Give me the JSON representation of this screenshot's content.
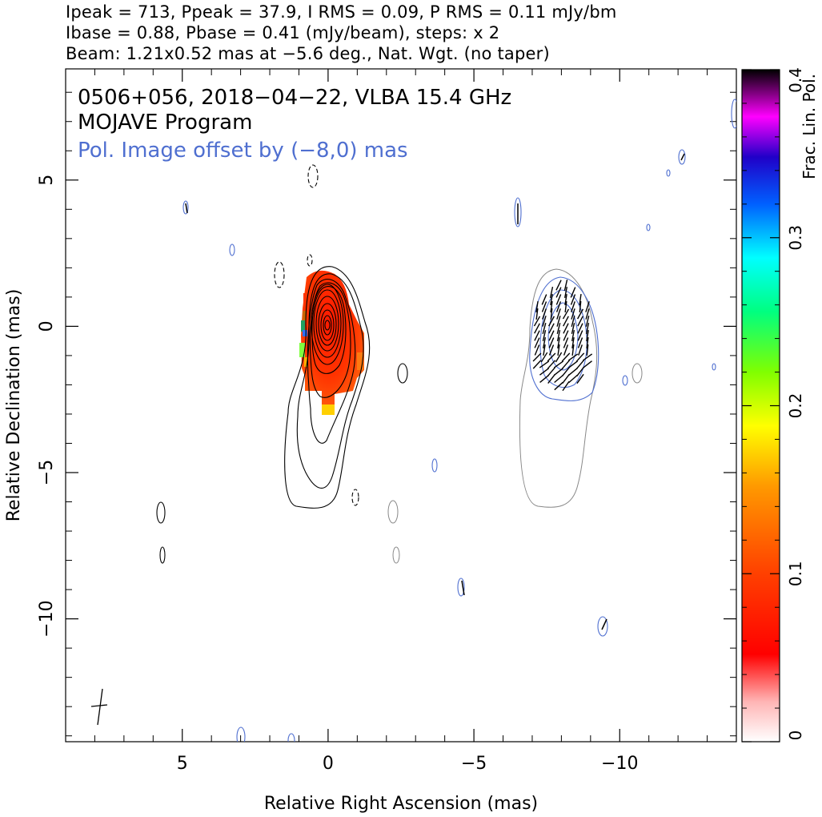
{
  "header": {
    "line1": "Ipeak = 713, Ppeak = 37.9, I RMS = 0.09, P RMS = 0.11 mJy/bm",
    "line2": "Ibase = 0.88, Pbase = 0.41 (mJy/beam), steps: x 2",
    "line3": "Beam: 1.21x0.52 mas at −5.6 deg., Nat. Wgt. (no taper)"
  },
  "chart_data": {
    "type": "heatmap",
    "title_lines": [
      "0506+056, 2018−04−22, VLBA 15.4 GHz",
      "MOJAVE Program"
    ],
    "annotation": "Pol. Image offset by (−8,0) mas",
    "annotation_color": "#4f6fd0",
    "xlabel": "Relative Right Ascension (mas)",
    "ylabel": "Relative Declination (mas)",
    "xlim": [
      9.0,
      -14.0
    ],
    "ylim": [
      -14.2,
      8.8
    ],
    "x_ticks": [
      5,
      0,
      -5,
      -10
    ],
    "x_tick_labels": [
      "5",
      "0",
      "−5",
      "−10"
    ],
    "y_ticks": [
      5,
      0,
      -5,
      -10
    ],
    "y_tick_labels": [
      "5",
      "0",
      "−5",
      "−10"
    ],
    "colorbar": {
      "label": "Frac. Lin. Pol.",
      "range": [
        0,
        0.4
      ],
      "ticks": [
        0,
        0.1,
        0.2,
        0.3,
        0.4
      ],
      "tick_labels": [
        "0",
        "0.1",
        "0.2",
        "0.3",
        "0.4"
      ]
    },
    "beam": {
      "major_mas": 1.21,
      "minor_mas": 0.52,
      "pa_deg": -5.6,
      "center": [
        7.8,
        -13.0
      ]
    },
    "stokes_i_contours": {
      "color": "#000000",
      "base_mjy_per_beam": 0.88,
      "step_factor": 2,
      "core": [
        0.0,
        0.0
      ]
    },
    "polarized_contours": {
      "color": "#4f6fd0",
      "base_mjy_per_beam": 0.41,
      "offset_mas": [
        -8,
        0
      ]
    },
    "peak_intensity_mjy": 713,
    "peak_polarized_mjy": 37.9
  }
}
